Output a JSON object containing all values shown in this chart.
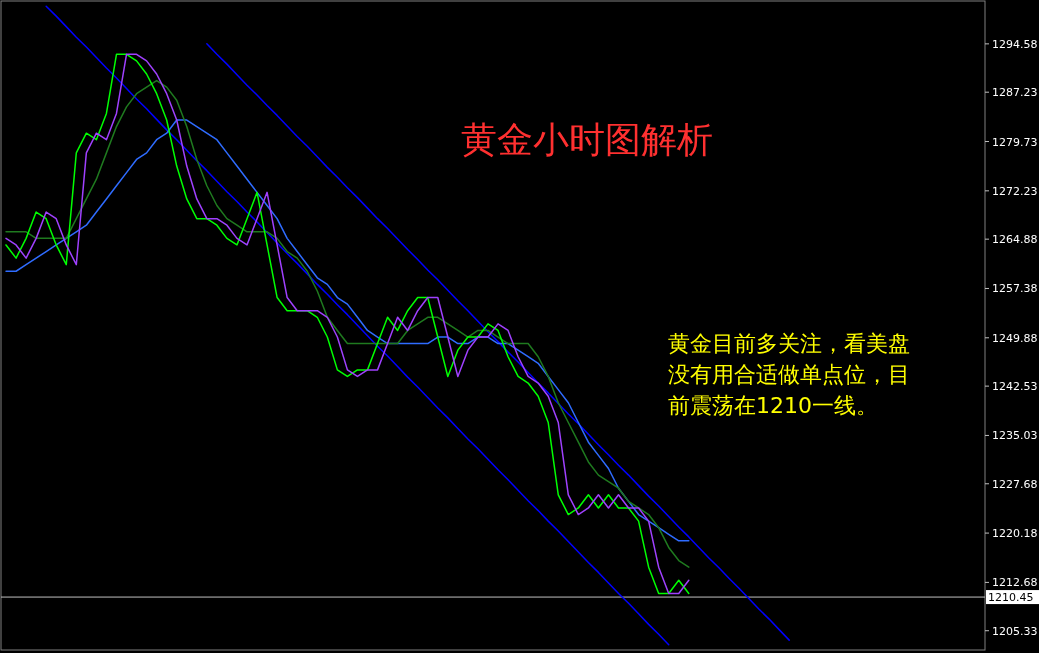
{
  "chart_data": {
    "type": "line",
    "title": "黄金小时图解析",
    "annotations": [
      "黄金目前多关注，看美盘没有用合适做单点位，目前震荡在1210一线。"
    ],
    "categories": [
      null,
      null,
      null,
      null,
      null,
      null,
      null,
      null,
      null,
      null,
      null,
      null,
      null,
      null,
      null,
      null,
      null,
      null,
      null,
      null,
      null,
      null,
      null,
      null,
      null,
      null,
      null,
      null,
      null,
      null,
      null,
      null,
      null,
      null,
      null,
      null,
      null,
      null,
      null,
      null,
      null,
      null,
      null,
      null,
      null,
      null,
      null,
      null,
      null,
      null,
      null,
      null,
      null,
      null,
      null,
      null,
      null,
      null,
      null,
      null,
      null,
      null,
      null,
      null,
      null,
      null,
      null,
      null,
      null,
      null,
      null,
      null,
      null,
      null,
      null,
      null,
      null,
      null,
      null,
      null,
      null,
      null,
      null,
      null,
      null,
      null,
      null,
      null,
      null,
      null,
      null,
      null,
      null,
      null,
      null,
      null,
      null,
      null
    ],
    "ylim": [
      1202.4,
      1301.1
    ],
    "yticks": [
      1294.58,
      1287.23,
      1279.73,
      1272.23,
      1264.88,
      1257.38,
      1249.88,
      1242.53,
      1235.03,
      1227.68,
      1220.18,
      1212.68,
      1205.33
    ],
    "ref_lines": [
      {
        "axis": "y",
        "value": 1210.45,
        "label": "1210.45",
        "color": "#c0c0c0"
      }
    ],
    "series": [
      {
        "color": "#0000ff",
        "values": [
          null,
          null,
          null,
          null,
          1300.3,
          1298.8,
          1297.2,
          1295.6,
          1294.1,
          1292.5,
          1290.9,
          1289.4,
          1287.8,
          1286.2,
          1284.7,
          1283.1,
          1281.5,
          1280.0,
          1278.4,
          1276.8,
          1275.3,
          1273.7,
          1272.1,
          1270.6,
          1269.0,
          1267.5,
          1265.9,
          1264.3,
          1262.7,
          1261.2,
          1259.6,
          1258.0,
          1256.5,
          1254.9,
          1253.4,
          1251.8,
          1250.2,
          1248.6,
          1247.1,
          1245.5,
          1243.9,
          1242.4,
          1240.8,
          1239.2,
          1237.7,
          1236.1,
          1234.5,
          1233.0,
          1231.4,
          1229.8,
          1228.3,
          1226.7,
          1225.1,
          1223.6,
          1222.0,
          1220.5,
          1218.9,
          1217.3,
          1215.7,
          1214.2,
          1212.6,
          1211.0,
          1209.5,
          1207.9,
          1206.3,
          1204.8,
          1203.2,
          null,
          null,
          null,
          null,
          null,
          null,
          null,
          null,
          null,
          null,
          null,
          null,
          null,
          null,
          null,
          null,
          null,
          null,
          null,
          null,
          null,
          null,
          null,
          null,
          null,
          null,
          null,
          null,
          null,
          null,
          null
        ]
      },
      {
        "color": "#0000ff",
        "values": [
          null,
          null,
          null,
          null,
          null,
          null,
          null,
          null,
          null,
          null,
          null,
          null,
          null,
          null,
          null,
          null,
          null,
          null,
          null,
          null,
          1294.6,
          1293.0,
          1291.5,
          1289.9,
          1288.3,
          1286.8,
          1285.2,
          1283.7,
          1282.1,
          1280.5,
          1279.0,
          1277.4,
          1275.8,
          1274.3,
          1272.7,
          1271.2,
          1269.6,
          1268.0,
          1266.5,
          1264.9,
          1263.3,
          1261.8,
          1260.2,
          1258.7,
          1257.1,
          1255.5,
          1254.0,
          1252.4,
          1250.8,
          1249.3,
          1247.7,
          1246.2,
          1244.6,
          1243.0,
          1241.5,
          1239.9,
          1238.3,
          1236.8,
          1235.2,
          1233.6,
          1232.1,
          1230.5,
          1229.0,
          1227.4,
          1225.8,
          1224.3,
          1222.7,
          1221.1,
          1219.6,
          1218.0,
          1216.4,
          1214.9,
          1213.3,
          1211.8,
          1210.2,
          1208.6,
          1207.1,
          1205.5,
          1203.9,
          null,
          null,
          null,
          null,
          null,
          null,
          null,
          null,
          null,
          null,
          null,
          null,
          null,
          null,
          null,
          null,
          null,
          null,
          null
        ]
      },
      {
        "color": "#2f6cff",
        "values": [
          1260,
          1260,
          1261,
          1262,
          1263,
          1264,
          1265,
          1266,
          1267,
          1269,
          1271,
          1273,
          1275,
          1277,
          1278,
          1280,
          1281,
          1283,
          1283,
          1282,
          1281,
          1280,
          1278,
          1276,
          1274,
          1272,
          1270,
          1268,
          1265,
          1263,
          1261,
          1259,
          1258,
          1256,
          1255,
          1253,
          1251,
          1250,
          1249,
          1249,
          1249,
          1249,
          1249,
          1250,
          1250,
          1249,
          1249,
          1250,
          1250,
          1249,
          1249,
          1248,
          1247,
          1246,
          1244,
          1242,
          1240,
          1237,
          1234,
          1232,
          1230,
          1227,
          1225,
          1223,
          1222,
          1221,
          1220,
          1219,
          1219,
          null,
          null,
          null,
          null,
          null,
          null,
          null,
          null,
          null,
          null,
          null,
          null,
          null,
          null,
          null,
          null,
          null,
          null,
          null,
          null,
          null,
          null,
          null,
          null,
          null,
          null,
          null,
          null,
          null
        ]
      },
      {
        "color": "#1f7a1f",
        "values": [
          1266,
          1266,
          1266,
          1265,
          1265,
          1265,
          1265,
          1268,
          1271,
          1274,
          1278,
          1282,
          1285,
          1287,
          1288,
          1289,
          1288,
          1286,
          1282,
          1277,
          1273,
          1270,
          1268,
          1267,
          1266,
          1266,
          1266,
          1265,
          1263,
          1262,
          1260,
          1257,
          1253,
          1251,
          1249,
          1249,
          1249,
          1249,
          1249,
          1249,
          1251,
          1252,
          1253,
          1253,
          1252,
          1251,
          1250,
          1251,
          1251,
          1250,
          1249,
          1249,
          1249,
          1247,
          1244,
          1240,
          1237,
          1234,
          1231,
          1229,
          1228,
          1227,
          1225,
          1224,
          1223,
          1221,
          1218,
          1216,
          1215,
          null,
          null,
          null,
          null,
          null,
          null,
          null,
          null,
          null,
          null,
          null,
          null,
          null,
          null,
          null,
          null,
          null,
          null,
          null,
          null,
          null,
          null,
          null,
          null,
          null,
          null,
          null,
          null,
          null
        ]
      },
      {
        "color": "#00ff00",
        "values": [
          1264,
          1262,
          1265,
          1269,
          1268,
          1264,
          1261,
          1278,
          1281,
          1280,
          1284,
          1293,
          1293,
          1292,
          1290,
          1287,
          1283,
          1276,
          1271,
          1268,
          1268,
          1267,
          1265,
          1264,
          1268,
          1272,
          1264,
          1256,
          1254,
          1254,
          1254,
          1253,
          1250,
          1245,
          1244,
          1245,
          1245,
          1249,
          1253,
          1251,
          1254,
          1256,
          1256,
          1250,
          1244,
          1248,
          1250,
          1250,
          1252,
          1251,
          1247,
          1244,
          1243,
          1241,
          1237,
          1226,
          1223,
          1224,
          1226,
          1224,
          1226,
          1224,
          1224,
          1222,
          1215,
          1211,
          1211,
          1213,
          1211,
          null,
          null,
          null,
          null,
          null,
          null,
          null,
          null,
          null,
          null,
          null,
          null,
          null,
          null,
          null,
          null,
          null,
          null,
          null,
          null,
          null,
          null,
          null,
          null,
          null,
          null,
          null,
          null,
          null
        ]
      },
      {
        "color": "#a040ff",
        "values": [
          1265,
          1264,
          1262,
          1265,
          1269,
          1268,
          1264,
          1261,
          1278,
          1281,
          1280,
          1284,
          1293,
          1293,
          1292,
          1290,
          1287,
          1283,
          1276,
          1271,
          1268,
          1268,
          1267,
          1265,
          1264,
          1268,
          1272,
          1264,
          1256,
          1254,
          1254,
          1254,
          1253,
          1250,
          1245,
          1244,
          1245,
          1245,
          1249,
          1253,
          1251,
          1254,
          1256,
          1256,
          1250,
          1244,
          1248,
          1250,
          1250,
          1252,
          1251,
          1247,
          1244,
          1243,
          1241,
          1237,
          1226,
          1223,
          1224,
          1226,
          1224,
          1226,
          1224,
          1224,
          1222,
          1215,
          1211,
          1211,
          1213,
          null,
          null,
          null,
          null,
          null,
          null,
          null,
          null,
          null,
          null,
          null,
          null,
          null,
          null,
          null,
          null,
          null,
          null,
          null,
          null,
          null,
          null,
          null,
          null,
          null,
          null,
          null,
          null,
          null
        ]
      }
    ]
  }
}
